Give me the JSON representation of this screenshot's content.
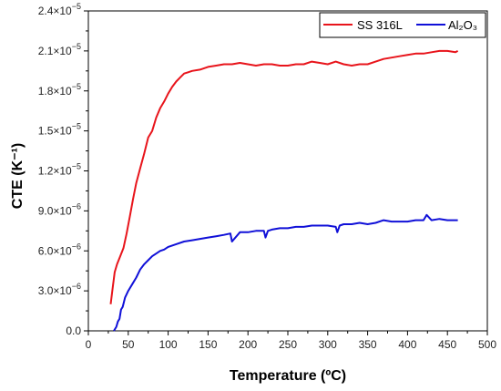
{
  "chart_data": {
    "type": "line",
    "title": "",
    "xlabel": "Temperature (ºC)",
    "ylabel": "CTE (K⁻¹)",
    "xlim": [
      0,
      500
    ],
    "ylim": [
      0,
      2.4e-05
    ],
    "x_ticks": [
      0,
      50,
      100,
      150,
      200,
      250,
      300,
      350,
      400,
      450,
      500
    ],
    "x_tick_labels": [
      "0",
      "50",
      "100",
      "150",
      "200",
      "250",
      "300",
      "350",
      "400",
      "450",
      "500"
    ],
    "y_ticks": [
      0,
      3e-06,
      6e-06,
      9e-06,
      1.2e-05,
      1.5e-05,
      1.8e-05,
      2.1e-05,
      2.4e-05
    ],
    "y_tick_labels": [
      {
        "mantissa": "0.0",
        "exp": ""
      },
      {
        "mantissa": "3.0×10",
        "exp": "−6"
      },
      {
        "mantissa": "6.0×10",
        "exp": "−6"
      },
      {
        "mantissa": "9.0×10",
        "exp": "−6"
      },
      {
        "mantissa": "1.2×10",
        "exp": "−5"
      },
      {
        "mantissa": "1.5×10",
        "exp": "−5"
      },
      {
        "mantissa": "1.8×10",
        "exp": "−5"
      },
      {
        "mantissa": "2.1×10",
        "exp": "−5"
      },
      {
        "mantissa": "2.4×10",
        "exp": "−5"
      }
    ],
    "grid": false,
    "legend": "top-right",
    "series": [
      {
        "name": "SS 316L",
        "color": "#e8141b",
        "x": [
          28,
          30,
          33,
          36,
          40,
          44,
          48,
          52,
          56,
          60,
          65,
          70,
          75,
          80,
          85,
          90,
          95,
          100,
          105,
          110,
          115,
          120,
          125,
          130,
          140,
          150,
          160,
          170,
          180,
          190,
          200,
          210,
          220,
          230,
          240,
          250,
          260,
          270,
          280,
          290,
          300,
          310,
          320,
          330,
          340,
          350,
          360,
          370,
          380,
          390,
          400,
          410,
          420,
          430,
          440,
          450,
          460,
          463
        ],
        "y": [
          2e-06,
          3e-06,
          4.4e-06,
          5e-06,
          5.6e-06,
          6.2e-06,
          7.3e-06,
          8.6e-06,
          9.9e-06,
          1.11e-05,
          1.22e-05,
          1.33e-05,
          1.45e-05,
          1.5e-05,
          1.6e-05,
          1.67e-05,
          1.72e-05,
          1.78e-05,
          1.83e-05,
          1.87e-05,
          1.9e-05,
          1.93e-05,
          1.94e-05,
          1.95e-05,
          1.96e-05,
          1.98e-05,
          1.99e-05,
          2e-05,
          2e-05,
          2.01e-05,
          2e-05,
          1.99e-05,
          2e-05,
          2e-05,
          1.99e-05,
          1.99e-05,
          2e-05,
          2e-05,
          2.02e-05,
          2.01e-05,
          2e-05,
          2.02e-05,
          2e-05,
          1.99e-05,
          2e-05,
          2e-05,
          2.02e-05,
          2.04e-05,
          2.05e-05,
          2.06e-05,
          2.07e-05,
          2.08e-05,
          2.08e-05,
          2.09e-05,
          2.1e-05,
          2.1e-05,
          2.09e-05,
          2.1e-05
        ]
      },
      {
        "name": "Al₂O₃",
        "color": "#1010d8",
        "x": [
          32,
          35,
          37,
          39,
          41,
          43,
          46,
          50,
          55,
          60,
          65,
          70,
          75,
          80,
          85,
          90,
          95,
          100,
          110,
          120,
          130,
          140,
          150,
          160,
          170,
          178,
          180,
          190,
          200,
          210,
          220,
          222,
          225,
          230,
          240,
          250,
          260,
          270,
          280,
          290,
          300,
          310,
          312,
          315,
          320,
          330,
          340,
          350,
          360,
          370,
          380,
          390,
          400,
          410,
          420,
          424,
          430,
          440,
          450,
          460,
          463
        ],
        "y": [
          0.0,
          3e-07,
          7e-07,
          9e-07,
          1.6e-06,
          1.8e-06,
          2.5e-06,
          3e-06,
          3.5e-06,
          4e-06,
          4.6e-06,
          5e-06,
          5.3e-06,
          5.6e-06,
          5.8e-06,
          6e-06,
          6.1e-06,
          6.3e-06,
          6.5e-06,
          6.7e-06,
          6.8e-06,
          6.9e-06,
          7e-06,
          7.1e-06,
          7.2e-06,
          7.3e-06,
          6.7e-06,
          7.4e-06,
          7.4e-06,
          7.5e-06,
          7.5e-06,
          7e-06,
          7.5e-06,
          7.6e-06,
          7.7e-06,
          7.7e-06,
          7.8e-06,
          7.8e-06,
          7.9e-06,
          7.9e-06,
          7.9e-06,
          7.8e-06,
          7.4e-06,
          7.9e-06,
          8e-06,
          8e-06,
          8.1e-06,
          8e-06,
          8.1e-06,
          8.3e-06,
          8.2e-06,
          8.2e-06,
          8.2e-06,
          8.3e-06,
          8.3e-06,
          8.7e-06,
          8.3e-06,
          8.4e-06,
          8.3e-06,
          8.3e-06,
          8.3e-06
        ]
      }
    ]
  }
}
